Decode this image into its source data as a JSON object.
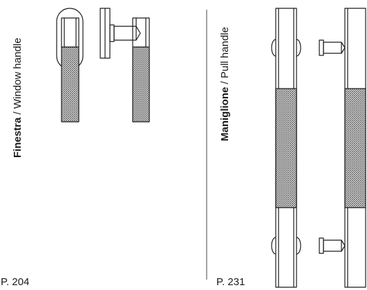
{
  "left_panel": {
    "product_name": "Finestra",
    "separator": " / ",
    "product_desc": "Window handle",
    "page_ref": "P. 204"
  },
  "right_panel": {
    "product_name": "Maniglione",
    "separator": " / ",
    "product_desc": "Pull handle",
    "page_ref": "P. 231"
  },
  "colors": {
    "line": "#1a1a1a",
    "knurl": "#555555",
    "divider": "#444444"
  }
}
